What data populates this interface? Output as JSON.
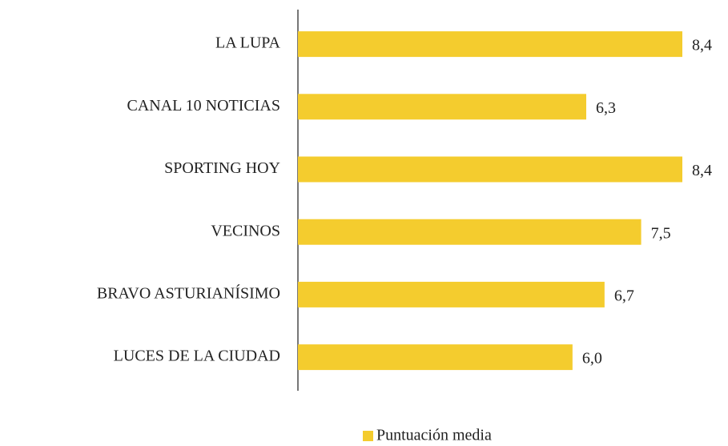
{
  "chart_data": {
    "type": "barh",
    "categories": [
      "LA LUPA",
      "CANAL 10 NOTICIAS",
      "SPORTING HOY",
      "VECINOS",
      "BRAVO ASTURIANÍSIMO",
      "LUCES DE LA CIUDAD"
    ],
    "series": [
      {
        "name": "Puntuación media",
        "color": "#f4cc2e",
        "values": [
          8.4,
          6.3,
          8.4,
          7.5,
          6.7,
          6.0
        ],
        "value_labels": [
          "8,4",
          "6,3",
          "8,4",
          "7,5",
          "6,7",
          "6,0"
        ]
      }
    ]
  }
}
